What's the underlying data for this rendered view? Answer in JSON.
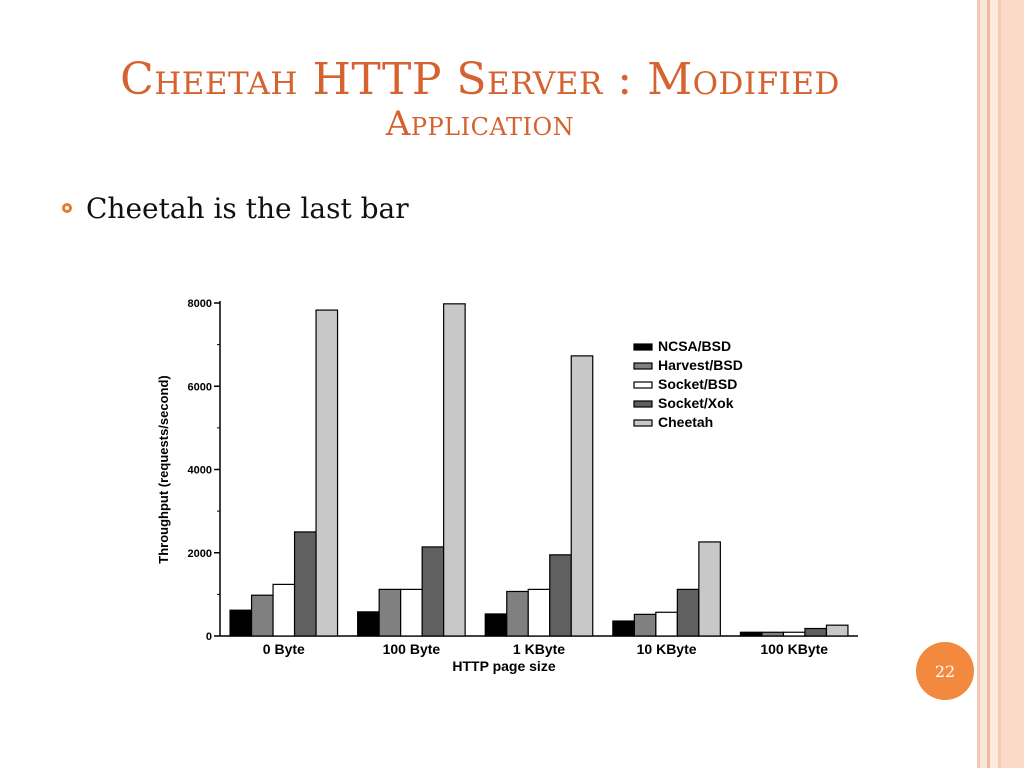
{
  "slide": {
    "title_line1": "Cheetah HTTP Server : Modified",
    "title_line2": "Application",
    "bullet": "Cheetah is the last bar",
    "page_number": "22"
  },
  "colors": {
    "title": "#d5622f",
    "accent": "#e87a2c",
    "badge": "#f2893f"
  },
  "chart_data": {
    "type": "bar",
    "xlabel": "HTTP page size",
    "ylabel": "Throughput (requests/second)",
    "ylim": [
      0,
      8000
    ],
    "yticks": [
      0,
      2000,
      4000,
      6000,
      8000
    ],
    "categories": [
      "0 Byte",
      "100 Byte",
      "1 KByte",
      "10 KByte",
      "100 KByte"
    ],
    "legend_position": "top-right",
    "grid": false,
    "series": [
      {
        "name": "NCSA/BSD",
        "color": "#000000",
        "values": [
          620,
          580,
          530,
          360,
          90
        ]
      },
      {
        "name": "Harvest/BSD",
        "color": "#808080",
        "values": [
          980,
          1120,
          1070,
          520,
          90
        ]
      },
      {
        "name": "Socket/BSD",
        "color": "#ffffff",
        "values": [
          1240,
          1120,
          1120,
          570,
          90
        ]
      },
      {
        "name": "Socket/Xok",
        "color": "#606060",
        "values": [
          2500,
          2140,
          1950,
          1120,
          180
        ]
      },
      {
        "name": "Cheetah",
        "color": "#c8c8c8",
        "values": [
          7830,
          7980,
          6730,
          2260,
          260
        ]
      }
    ]
  }
}
